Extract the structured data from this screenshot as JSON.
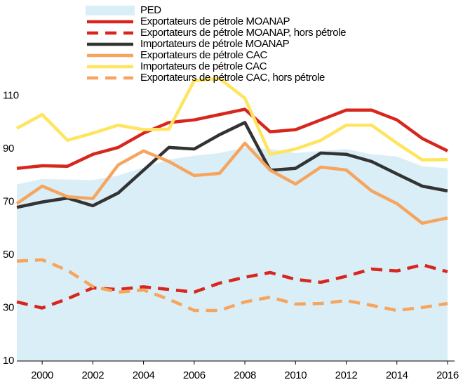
{
  "chart_data": {
    "type": "line",
    "x": [
      1999,
      2000,
      2001,
      2002,
      2003,
      2004,
      2005,
      2006,
      2007,
      2008,
      2009,
      2010,
      2011,
      2012,
      2013,
      2014,
      2015,
      2016
    ],
    "xlim": [
      1999,
      2016
    ],
    "xticks": [
      2000,
      2002,
      2004,
      2006,
      2008,
      2010,
      2012,
      2014,
      2016
    ],
    "ylim": [
      10,
      120
    ],
    "yticks": [
      10,
      30,
      50,
      70,
      90,
      110
    ],
    "series": [
      {
        "name": "PED",
        "color": "#daeef7",
        "style": "area",
        "values": [
          76.6,
          78.7,
          78.5,
          78.3,
          80,
          83,
          86,
          87.5,
          88.5,
          90.6,
          90,
          88.5,
          89.3,
          90,
          88,
          87.2,
          83.5,
          82.7
        ]
      },
      {
        "name": "Exportateurs de pétrole MOANAP",
        "color": "#d7261e",
        "style": "solid",
        "values": [
          82.7,
          83.7,
          83.5,
          88,
          90.6,
          96,
          100,
          101,
          103,
          105,
          96.5,
          97.3,
          101,
          104.7,
          104.7,
          101,
          94,
          89.3
        ]
      },
      {
        "name": "Exportateurs de pétrole MOANAP, hors pétrole",
        "color": "#d7261e",
        "style": "dashed",
        "values": [
          32.3,
          30,
          33.5,
          37.6,
          37,
          38,
          37,
          36,
          39.4,
          41.6,
          43.4,
          40.8,
          39.7,
          42,
          44.7,
          44,
          46.3,
          43.7
        ]
      },
      {
        "name": "Importateurs de pétrole MOANAP",
        "color": "#333333",
        "style": "solid",
        "values": [
          68,
          70,
          71.5,
          68.6,
          73.4,
          82,
          90.6,
          90,
          95.4,
          100,
          82,
          82.7,
          88.5,
          88,
          85.3,
          80.6,
          76,
          74.2
        ]
      },
      {
        "name": "Exportateurs de pétrole CAC",
        "color": "#f6a55f",
        "style": "solid",
        "values": [
          69.4,
          76,
          72,
          71.3,
          84,
          89.3,
          85.3,
          80,
          80.8,
          92.2,
          82,
          76.8,
          83.2,
          82.1,
          74.2,
          69.4,
          62,
          64
        ]
      },
      {
        "name": "Importateurs de pétrole CAC",
        "color": "#ffe45e",
        "style": "solid",
        "values": [
          97.8,
          103,
          93.3,
          96,
          99,
          97.3,
          97.5,
          115.8,
          116.6,
          109.2,
          88,
          90,
          93.3,
          99,
          99,
          92.2,
          85.9,
          86
        ]
      },
      {
        "name": "Exportateurs de pétrole CAC, hors pétrole",
        "color": "#f6a55f",
        "style": "dashed",
        "values": [
          47.7,
          48.2,
          44.2,
          38.1,
          36,
          36.8,
          33.3,
          29.1,
          29.1,
          32.3,
          34.1,
          31.5,
          31.7,
          32.8,
          31,
          29.1,
          30.2,
          31.7
        ]
      }
    ]
  }
}
